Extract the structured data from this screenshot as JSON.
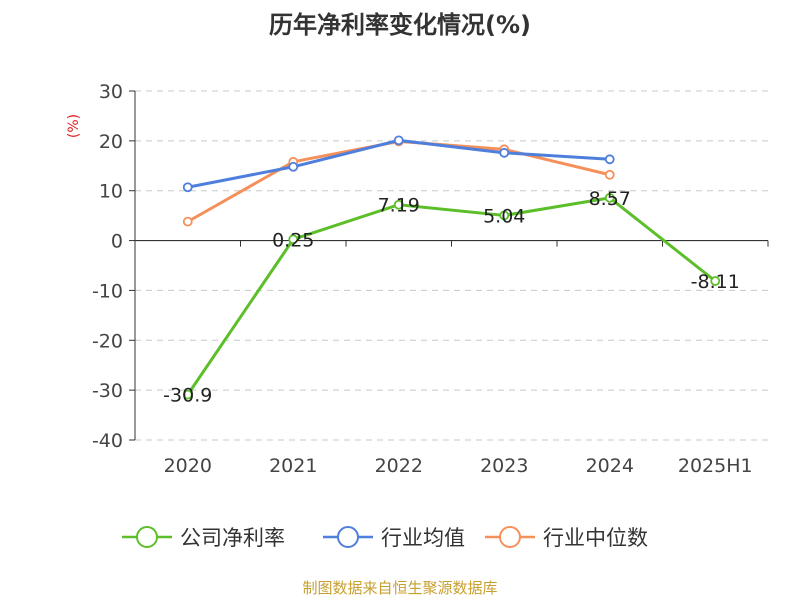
{
  "chart_data": {
    "type": "line",
    "title": "历年净利率变化情况(%)",
    "ylabel": "(%)",
    "categories": [
      "2020",
      "2021",
      "2022",
      "2023",
      "2024",
      "2025H1"
    ],
    "ylim": [
      -40,
      30
    ],
    "yticks": [
      "30",
      "20",
      "10",
      "0",
      "-10",
      "-20",
      "-30",
      "-40"
    ],
    "ytick_values": [
      30,
      20,
      10,
      0,
      -10,
      -20,
      -30,
      -40
    ],
    "grid": true,
    "legend_position": "bottom",
    "series": [
      {
        "name": "公司净利率",
        "color": "#5cbf2a",
        "values": [
          -30.9,
          0.25,
          7.19,
          5.04,
          8.57,
          -8.11
        ],
        "labels": [
          "-30.9",
          "0.25",
          "7.19",
          "5.04",
          "8.57",
          "-8.11"
        ],
        "show_labels": true
      },
      {
        "name": "行业均值",
        "color": "#4f7fdc",
        "values": [
          10.7,
          14.8,
          20.1,
          17.6,
          16.3,
          null
        ]
      },
      {
        "name": "行业中位数",
        "color": "#f6905a",
        "values": [
          3.8,
          15.8,
          19.9,
          18.3,
          13.2,
          null
        ]
      }
    ]
  },
  "source_note": "制图数据来自恒生聚源数据库"
}
